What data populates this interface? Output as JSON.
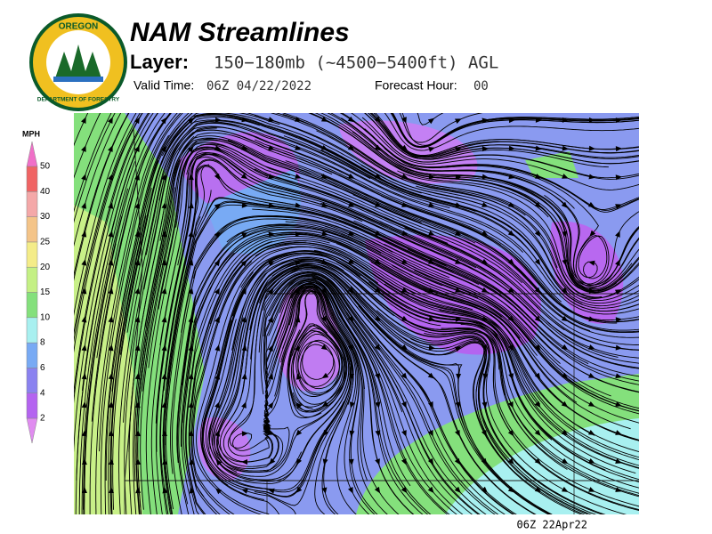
{
  "header": {
    "title": "NAM Streamlines",
    "layer_label": "Layer:",
    "layer_value": "150−180mb (~4500−5400ft) AGL",
    "valid_label": "Valid Time:",
    "valid_value": "06Z 04/22/2022",
    "forecast_label": "Forecast Hour:",
    "forecast_value": "00"
  },
  "logo": {
    "top": "OREGON",
    "bottom": "DEPARTMENT OF FORESTRY"
  },
  "legend": {
    "unit": "MPH",
    "levels": [
      2,
      4,
      6,
      8,
      10,
      15,
      20,
      25,
      30,
      40,
      50
    ],
    "colors": [
      "#e08cf0",
      "#b464f0",
      "#8a82f0",
      "#78aaf4",
      "#a8f0f0",
      "#84e07c",
      "#c4f084",
      "#f4ec88",
      "#f4c488",
      "#f4a8a8",
      "#f06464",
      "#f070c8"
    ]
  },
  "footer": {
    "timestamp": "06Z 22Apr22"
  }
}
